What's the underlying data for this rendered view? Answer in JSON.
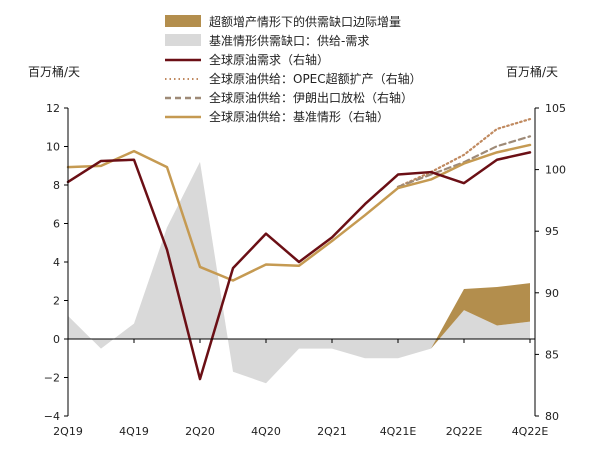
{
  "chart_data": {
    "type": "line",
    "left_unit": "百万桶/天",
    "right_unit": "百万桶/天",
    "left_ylim": [
      -4,
      12
    ],
    "left_ticks": [
      -4,
      -2,
      0,
      2,
      4,
      6,
      8,
      10,
      12
    ],
    "right_ylim": [
      80,
      105
    ],
    "right_ticks": [
      80,
      85,
      90,
      95,
      100,
      105
    ],
    "x_count": 20,
    "x_ticks": [
      {
        "i": 0,
        "label": "2Q19"
      },
      {
        "i": 2,
        "label": "4Q19"
      },
      {
        "i": 4,
        "label": "2Q20"
      },
      {
        "i": 6,
        "label": "4Q20"
      },
      {
        "i": 8,
        "label": "2Q21"
      },
      {
        "i": 10,
        "label": "4Q21E"
      },
      {
        "i": 12,
        "label": "2Q22E"
      },
      {
        "i": 14,
        "label": "4Q22E"
      }
    ],
    "legend": [
      {
        "label": "超额增产情形下的供需缺口边际增量",
        "style": "fill",
        "color": "#b38e4d"
      },
      {
        "label": "基准情形供需缺口：供给-需求",
        "style": "fill",
        "color": "#d9d9d9"
      },
      {
        "label": "全球原油需求（右轴）",
        "style": "solid",
        "color": "#6b0f15"
      },
      {
        "label": "全球原油供给：OPEC超额扩产（右轴）",
        "style": "dotted",
        "color": "#c08a60"
      },
      {
        "label": "全球原油供给：伊朗出口放松（右轴）",
        "style": "dashed",
        "color": "#9e8a77"
      },
      {
        "label": "全球原油供给：基准情形（右轴）",
        "style": "solid",
        "color": "#c59a52"
      }
    ],
    "series": [
      {
        "key": "gap_base",
        "axis": "left",
        "kind": "area",
        "color": "#d9d9d9",
        "x": [
          0,
          1,
          2,
          3,
          4,
          5,
          6,
          7,
          8,
          9,
          10,
          11,
          12,
          13,
          14
        ],
        "values": [
          1.2,
          -0.5,
          0.8,
          5.8,
          9.2,
          -1.7,
          -2.3,
          -0.5,
          -0.5,
          -1.0,
          -1.0,
          -0.5,
          1.5,
          0.7,
          0.9
        ]
      },
      {
        "key": "gap_extra",
        "axis": "left",
        "kind": "band",
        "color": "#b38e4d",
        "x": [
          11,
          12,
          13,
          14
        ],
        "lower": [
          -0.5,
          1.5,
          0.7,
          0.9
        ],
        "upper": [
          -0.5,
          2.6,
          2.7,
          2.9
        ]
      },
      {
        "key": "demand",
        "axis": "right",
        "kind": "line",
        "color": "#6b0f15",
        "dash": "",
        "x": [
          0,
          1,
          2,
          3,
          4,
          5,
          6,
          7,
          8,
          9,
          10,
          11,
          12,
          13,
          14
        ],
        "values": [
          99.0,
          100.7,
          100.8,
          93.5,
          83.0,
          92.0,
          94.8,
          92.5,
          94.5,
          97.2,
          99.6,
          99.8,
          98.9,
          100.8,
          101.4
        ]
      },
      {
        "key": "supply_opec",
        "axis": "right",
        "kind": "line",
        "color": "#c08a60",
        "dash": "1.5,3",
        "x": [
          10,
          11,
          12,
          13,
          14
        ],
        "values": [
          98.6,
          99.8,
          101.2,
          103.3,
          104.1
        ]
      },
      {
        "key": "supply_iran",
        "axis": "right",
        "kind": "line",
        "color": "#9e8a77",
        "dash": "6,4",
        "x": [
          10,
          11,
          12,
          13,
          14
        ],
        "values": [
          98.6,
          99.6,
          100.6,
          101.9,
          102.7
        ]
      },
      {
        "key": "supply_base",
        "axis": "right",
        "kind": "line",
        "color": "#c59a52",
        "dash": "",
        "x": [
          0,
          1,
          2,
          3,
          4,
          5,
          6,
          7,
          8,
          9,
          10,
          11,
          12,
          13,
          14
        ],
        "values": [
          100.2,
          100.3,
          101.5,
          100.2,
          92.1,
          91.0,
          92.3,
          92.2,
          94.2,
          96.3,
          98.5,
          99.2,
          100.5,
          101.4,
          102.0
        ]
      }
    ]
  }
}
